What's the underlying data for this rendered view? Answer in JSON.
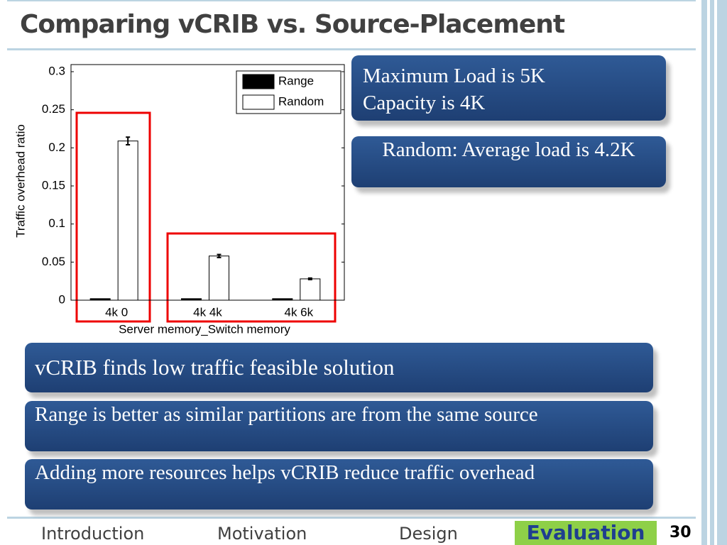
{
  "title": "Comparing vCRIB vs. Source-Placement",
  "chart_data": {
    "type": "bar",
    "y_label": "Traffic overhead ratio",
    "x_label": "Server memory_Switch memory",
    "categories": [
      "4k 0",
      "4k 4k",
      "4k 6k"
    ],
    "series": [
      {
        "name": "Range",
        "color": "#000000",
        "values": [
          0.002,
          0.002,
          0.002
        ]
      },
      {
        "name": "Random",
        "color": "#ffffff",
        "values": [
          0.209,
          0.058,
          0.028
        ],
        "errors": [
          0.005,
          0.002,
          0.001
        ]
      }
    ],
    "ylim": [
      0,
      0.3
    ],
    "yticks": [
      0,
      0.05,
      0.1,
      0.15,
      0.2,
      0.25,
      0.3
    ],
    "legend": "upper right"
  },
  "notes": {
    "load": [
      "Maximum Load is 5K",
      "Capacity is 4K"
    ],
    "random": "Random: Average load is 4.2K"
  },
  "points": [
    "vCRIB finds low traffic feasible solution",
    "Range is better as similar partitions are from the same source",
    "Adding more resources helps vCRIB reduce traffic overhead"
  ],
  "nav": [
    "Introduction",
    "Motivation",
    "Design",
    "Evaluation"
  ],
  "page_number": 30
}
